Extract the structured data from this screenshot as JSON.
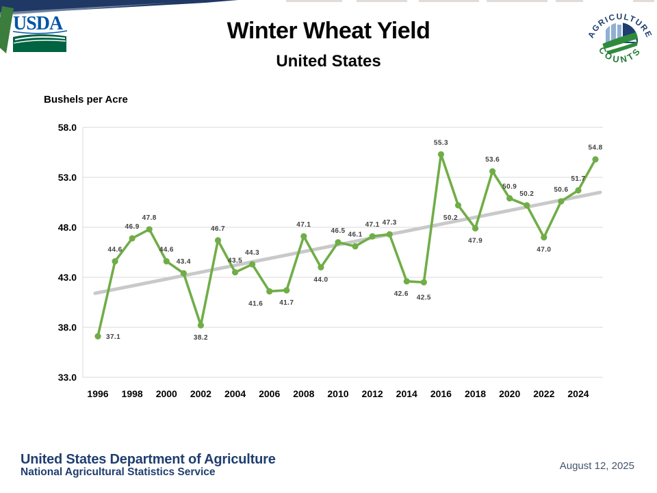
{
  "header": {
    "title": "Winter Wheat Yield",
    "subtitle": "United States",
    "usda_logo_text": "USDA",
    "agriculture_counts_logo": {
      "top_text": "AGRICULTURE",
      "bottom_text": "COUNTS"
    }
  },
  "chart_data": {
    "type": "line",
    "title": "Winter Wheat Yield",
    "subtitle": "United States",
    "ylabel": "Bushels per Acre",
    "ylim": [
      33.0,
      58.0
    ],
    "ytick_labels": [
      "58.0",
      "53.0",
      "48.0",
      "43.0",
      "38.0",
      "33.0"
    ],
    "xtick_labels": [
      "1996",
      "1998",
      "2000",
      "2002",
      "2004",
      "2006",
      "2008",
      "2010",
      "2012",
      "2014",
      "2016",
      "2018",
      "2020",
      "2022",
      "2024"
    ],
    "grid": "horizontal",
    "legend": "none",
    "line_color": "#70ad47",
    "data_label_color": "#404040",
    "trend_color": "#c9c9c9",
    "grid_color": "#d9d9d9",
    "trendline": {
      "start_year": 1996,
      "start_value": 41.4,
      "end_year": 2025,
      "end_value": 51.5
    },
    "series": [
      {
        "name": "Winter wheat yield (bushels per acre)",
        "points": [
          {
            "year": 1996,
            "value": 37.1,
            "label": "37.1",
            "label_pos": "right"
          },
          {
            "year": 1997,
            "value": 44.6,
            "label": "44.6",
            "label_pos": "above"
          },
          {
            "year": 1998,
            "value": 46.9,
            "label": "46.9",
            "label_pos": "above"
          },
          {
            "year": 1999,
            "value": 47.8,
            "label": "47.8",
            "label_pos": "above"
          },
          {
            "year": 2000,
            "value": 44.6,
            "label": "44.6",
            "label_pos": "above"
          },
          {
            "year": 2001,
            "value": 43.4,
            "label": "43.4",
            "label_pos": "above"
          },
          {
            "year": 2002,
            "value": 38.2,
            "label": "38.2",
            "label_pos": "below"
          },
          {
            "year": 2003,
            "value": 46.7,
            "label": "46.7",
            "label_pos": "above"
          },
          {
            "year": 2004,
            "value": 43.5,
            "label": "43.5",
            "label_pos": "above"
          },
          {
            "year": 2005,
            "value": 44.3,
            "label": "44.3",
            "label_pos": "above"
          },
          {
            "year": 2006,
            "value": 41.6,
            "label": "41.6",
            "label_pos": "below",
            "label_dx": -20
          },
          {
            "year": 2007,
            "value": 41.7,
            "label": "41.7",
            "label_pos": "below"
          },
          {
            "year": 2008,
            "value": 47.1,
            "label": "47.1",
            "label_pos": "above"
          },
          {
            "year": 2009,
            "value": 44.0,
            "label": "44.0",
            "label_pos": "below"
          },
          {
            "year": 2010,
            "value": 46.5,
            "label": "46.5",
            "label_pos": "above"
          },
          {
            "year": 2011,
            "value": 46.1,
            "label": "46.1",
            "label_pos": "above"
          },
          {
            "year": 2012,
            "value": 47.1,
            "label": "47.1",
            "label_pos": "above"
          },
          {
            "year": 2013,
            "value": 47.3,
            "label": "47.3",
            "label_pos": "above"
          },
          {
            "year": 2014,
            "value": 42.6,
            "label": "42.6",
            "label_pos": "below",
            "label_dx": -8
          },
          {
            "year": 2015,
            "value": 42.5,
            "label": "42.5",
            "label_pos": "below",
            "label_dy": 4
          },
          {
            "year": 2016,
            "value": 55.3,
            "label": "55.3",
            "label_pos": "above"
          },
          {
            "year": 2017,
            "value": 50.2,
            "label": "50.2",
            "label_pos": "below",
            "label_dx": -11
          },
          {
            "year": 2018,
            "value": 47.9,
            "label": "47.9",
            "label_pos": "below"
          },
          {
            "year": 2019,
            "value": 53.6,
            "label": "53.6",
            "label_pos": "above"
          },
          {
            "year": 2020,
            "value": 50.9,
            "label": "50.9",
            "label_pos": "above"
          },
          {
            "year": 2021,
            "value": 50.2,
            "label": "50.2",
            "label_pos": "above"
          },
          {
            "year": 2022,
            "value": 47.0,
            "label": "47.0",
            "label_pos": "below"
          },
          {
            "year": 2023,
            "value": 50.6,
            "label": "50.6",
            "label_pos": "above"
          },
          {
            "year": 2024,
            "value": 51.7,
            "label": "51.7",
            "label_pos": "above"
          },
          {
            "year": 2025,
            "value": 54.8,
            "label": "54.8",
            "label_pos": "above"
          }
        ]
      }
    ]
  },
  "footer": {
    "org": "United States Department of Agriculture",
    "division": "National Agricultural Statistics Service",
    "date": "August 12, 2025"
  },
  "colors": {
    "banner_navy": "#1f3864",
    "banner_green": "#3b7d3c",
    "banner_steel": "#8496b0",
    "usda_blue": "#0455a4",
    "usda_green": "#006341",
    "footer_navy": "#1f3e6f",
    "date_gray_blue": "#44546a",
    "line_green": "#70ad47",
    "trend_gray": "#c9c9c9"
  }
}
